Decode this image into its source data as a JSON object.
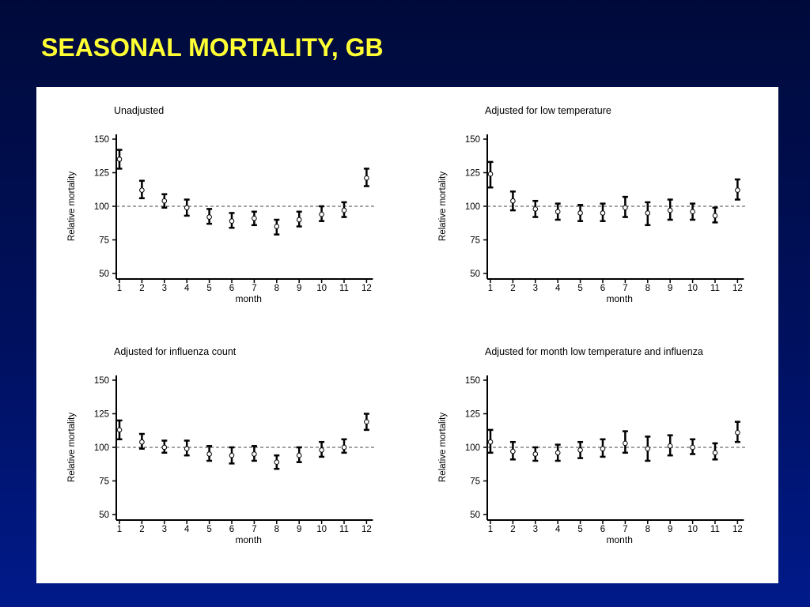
{
  "slide": {
    "title": "SEASONAL MORTALITY, GB"
  },
  "chart_data": [
    {
      "type": "scatter",
      "title": "Unadjusted",
      "xlabel": "month",
      "ylabel": "Relative mortality",
      "x": [
        1,
        2,
        3,
        4,
        5,
        6,
        7,
        8,
        9,
        10,
        11,
        12
      ],
      "xticks": [
        "1",
        "2",
        "3",
        "4",
        "5",
        "6",
        "7",
        "8",
        "9",
        "10",
        "11",
        "12"
      ],
      "yticks": [
        50,
        75,
        100,
        125,
        150
      ],
      "ylim": [
        50,
        150
      ],
      "reference_line": 100,
      "series": [
        {
          "values": [
            135,
            112,
            104,
            99,
            92,
            89,
            91,
            85,
            90,
            94,
            97,
            121
          ],
          "lower": [
            128,
            106,
            99,
            93,
            87,
            84,
            86,
            79,
            85,
            89,
            92,
            115
          ],
          "upper": [
            142,
            119,
            109,
            105,
            98,
            95,
            96,
            90,
            96,
            100,
            103,
            128
          ]
        }
      ]
    },
    {
      "type": "scatter",
      "title": "Adjusted for low temperature",
      "xlabel": "month",
      "ylabel": "Relative mortality",
      "x": [
        1,
        2,
        3,
        4,
        5,
        6,
        7,
        8,
        9,
        10,
        11,
        12
      ],
      "xticks": [
        "1",
        "2",
        "3",
        "4",
        "5",
        "6",
        "7",
        "8",
        "9",
        "10",
        "11",
        "12"
      ],
      "yticks": [
        50,
        75,
        100,
        125,
        150
      ],
      "ylim": [
        50,
        150
      ],
      "reference_line": 100,
      "series": [
        {
          "values": [
            124,
            104,
            98,
            96,
            95,
            95,
            99,
            95,
            97,
            96,
            93,
            112
          ],
          "lower": [
            114,
            97,
            92,
            90,
            89,
            89,
            92,
            86,
            90,
            90,
            88,
            105
          ],
          "upper": [
            133,
            111,
            104,
            102,
            101,
            102,
            107,
            103,
            105,
            102,
            99,
            120
          ]
        }
      ]
    },
    {
      "type": "scatter",
      "title": "Adjusted for influenza count",
      "xlabel": "month",
      "ylabel": "Relative mortality",
      "x": [
        1,
        2,
        3,
        4,
        5,
        6,
        7,
        8,
        9,
        10,
        11,
        12
      ],
      "xticks": [
        "1",
        "2",
        "3",
        "4",
        "5",
        "6",
        "7",
        "8",
        "9",
        "10",
        "11",
        "12"
      ],
      "yticks": [
        50,
        75,
        100,
        125,
        150
      ],
      "ylim": [
        50,
        150
      ],
      "reference_line": 100,
      "series": [
        {
          "values": [
            113,
            104,
            100,
            99,
            95,
            94,
            95,
            89,
            94,
            98,
            100,
            119
          ],
          "lower": [
            106,
            99,
            96,
            94,
            90,
            88,
            90,
            84,
            89,
            93,
            96,
            113
          ],
          "upper": [
            120,
            110,
            105,
            105,
            101,
            100,
            101,
            94,
            100,
            104,
            106,
            125
          ]
        }
      ]
    },
    {
      "type": "scatter",
      "title": "Adjusted for month low temperature and influenza",
      "xlabel": "month",
      "ylabel": "Relative mortality",
      "x": [
        1,
        2,
        3,
        4,
        5,
        6,
        7,
        8,
        9,
        10,
        11,
        12
      ],
      "xticks": [
        "1",
        "2",
        "3",
        "4",
        "5",
        "6",
        "7",
        "8",
        "9",
        "10",
        "11",
        "12"
      ],
      "yticks": [
        50,
        75,
        100,
        125,
        150
      ],
      "ylim": [
        50,
        150
      ],
      "reference_line": 100,
      "series": [
        {
          "values": [
            104,
            97,
            95,
            96,
            98,
            99,
            103,
            99,
            101,
            100,
            96,
            111
          ],
          "lower": [
            96,
            91,
            90,
            90,
            92,
            93,
            96,
            90,
            94,
            95,
            91,
            104
          ],
          "upper": [
            113,
            104,
            100,
            102,
            104,
            106,
            112,
            108,
            109,
            106,
            103,
            119
          ]
        }
      ]
    }
  ]
}
